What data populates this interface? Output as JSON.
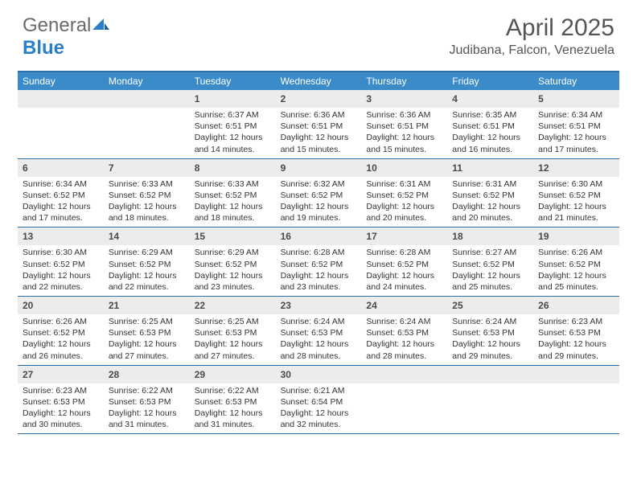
{
  "brand": {
    "text_a": "General",
    "text_b": "Blue"
  },
  "title": "April 2025",
  "location": "Judibana, Falcon, Venezuela",
  "colors": {
    "header_bar": "#3b8bc9",
    "rule": "#2a6fa8",
    "daynum_bg": "#ececec",
    "text": "#333333",
    "title_text": "#555555"
  },
  "dow": [
    "Sunday",
    "Monday",
    "Tuesday",
    "Wednesday",
    "Thursday",
    "Friday",
    "Saturday"
  ],
  "weeks": [
    [
      {
        "n": "",
        "empty": true
      },
      {
        "n": "",
        "empty": true
      },
      {
        "n": "1",
        "sr": "6:37 AM",
        "ss": "6:51 PM",
        "dl": "12 hours and 14 minutes."
      },
      {
        "n": "2",
        "sr": "6:36 AM",
        "ss": "6:51 PM",
        "dl": "12 hours and 15 minutes."
      },
      {
        "n": "3",
        "sr": "6:36 AM",
        "ss": "6:51 PM",
        "dl": "12 hours and 15 minutes."
      },
      {
        "n": "4",
        "sr": "6:35 AM",
        "ss": "6:51 PM",
        "dl": "12 hours and 16 minutes."
      },
      {
        "n": "5",
        "sr": "6:34 AM",
        "ss": "6:51 PM",
        "dl": "12 hours and 17 minutes."
      }
    ],
    [
      {
        "n": "6",
        "sr": "6:34 AM",
        "ss": "6:52 PM",
        "dl": "12 hours and 17 minutes."
      },
      {
        "n": "7",
        "sr": "6:33 AM",
        "ss": "6:52 PM",
        "dl": "12 hours and 18 minutes."
      },
      {
        "n": "8",
        "sr": "6:33 AM",
        "ss": "6:52 PM",
        "dl": "12 hours and 18 minutes."
      },
      {
        "n": "9",
        "sr": "6:32 AM",
        "ss": "6:52 PM",
        "dl": "12 hours and 19 minutes."
      },
      {
        "n": "10",
        "sr": "6:31 AM",
        "ss": "6:52 PM",
        "dl": "12 hours and 20 minutes."
      },
      {
        "n": "11",
        "sr": "6:31 AM",
        "ss": "6:52 PM",
        "dl": "12 hours and 20 minutes."
      },
      {
        "n": "12",
        "sr": "6:30 AM",
        "ss": "6:52 PM",
        "dl": "12 hours and 21 minutes."
      }
    ],
    [
      {
        "n": "13",
        "sr": "6:30 AM",
        "ss": "6:52 PM",
        "dl": "12 hours and 22 minutes."
      },
      {
        "n": "14",
        "sr": "6:29 AM",
        "ss": "6:52 PM",
        "dl": "12 hours and 22 minutes."
      },
      {
        "n": "15",
        "sr": "6:29 AM",
        "ss": "6:52 PM",
        "dl": "12 hours and 23 minutes."
      },
      {
        "n": "16",
        "sr": "6:28 AM",
        "ss": "6:52 PM",
        "dl": "12 hours and 23 minutes."
      },
      {
        "n": "17",
        "sr": "6:28 AM",
        "ss": "6:52 PM",
        "dl": "12 hours and 24 minutes."
      },
      {
        "n": "18",
        "sr": "6:27 AM",
        "ss": "6:52 PM",
        "dl": "12 hours and 25 minutes."
      },
      {
        "n": "19",
        "sr": "6:26 AM",
        "ss": "6:52 PM",
        "dl": "12 hours and 25 minutes."
      }
    ],
    [
      {
        "n": "20",
        "sr": "6:26 AM",
        "ss": "6:52 PM",
        "dl": "12 hours and 26 minutes."
      },
      {
        "n": "21",
        "sr": "6:25 AM",
        "ss": "6:53 PM",
        "dl": "12 hours and 27 minutes."
      },
      {
        "n": "22",
        "sr": "6:25 AM",
        "ss": "6:53 PM",
        "dl": "12 hours and 27 minutes."
      },
      {
        "n": "23",
        "sr": "6:24 AM",
        "ss": "6:53 PM",
        "dl": "12 hours and 28 minutes."
      },
      {
        "n": "24",
        "sr": "6:24 AM",
        "ss": "6:53 PM",
        "dl": "12 hours and 28 minutes."
      },
      {
        "n": "25",
        "sr": "6:24 AM",
        "ss": "6:53 PM",
        "dl": "12 hours and 29 minutes."
      },
      {
        "n": "26",
        "sr": "6:23 AM",
        "ss": "6:53 PM",
        "dl": "12 hours and 29 minutes."
      }
    ],
    [
      {
        "n": "27",
        "sr": "6:23 AM",
        "ss": "6:53 PM",
        "dl": "12 hours and 30 minutes."
      },
      {
        "n": "28",
        "sr": "6:22 AM",
        "ss": "6:53 PM",
        "dl": "12 hours and 31 minutes."
      },
      {
        "n": "29",
        "sr": "6:22 AM",
        "ss": "6:53 PM",
        "dl": "12 hours and 31 minutes."
      },
      {
        "n": "30",
        "sr": "6:21 AM",
        "ss": "6:54 PM",
        "dl": "12 hours and 32 minutes."
      },
      {
        "n": "",
        "empty": true
      },
      {
        "n": "",
        "empty": true
      },
      {
        "n": "",
        "empty": true
      }
    ]
  ],
  "labels": {
    "sunrise": "Sunrise:",
    "sunset": "Sunset:",
    "daylight": "Daylight:"
  }
}
